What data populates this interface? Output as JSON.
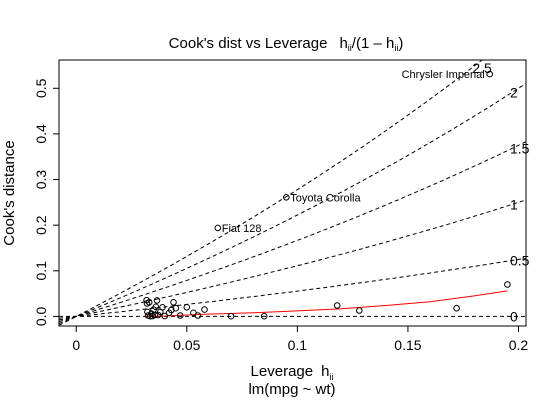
{
  "chart_data": {
    "type": "scatter",
    "title": "Cook's dist vs Leverage",
    "title_formula": {
      "lhs": "h",
      "lhs_sub": "ii",
      "rhs_open": "/(1 – h",
      "rhs_sub": "ii",
      "rhs_close": ")"
    },
    "xlabel": "Leverage",
    "xlabel_h": "h",
    "xlabel_sub": "ii",
    "ylabel": "Cook's distance",
    "subtitle": "lm(mpg ~ wt)",
    "xlim": [
      -0.0078,
      0.2034
    ],
    "ylim": [
      -0.021,
      0.562
    ],
    "x_ticks": [
      0,
      0.05,
      0.1,
      0.15,
      0.2
    ],
    "x_tick_labels": [
      "0",
      "0.05",
      "0.1",
      "0.15",
      "0.2"
    ],
    "y_ticks": [
      0,
      0.1,
      0.2,
      0.3,
      0.4,
      0.5
    ],
    "y_tick_labels": [
      "0.0",
      "0.1",
      "0.2",
      "0.3",
      "0.4",
      "0.5"
    ],
    "grid": false,
    "points": [
      {
        "x": 0.0318,
        "y": 0.0355
      },
      {
        "x": 0.032,
        "y": 0.0285
      },
      {
        "x": 0.0322,
        "y": 0.01
      },
      {
        "x": 0.0325,
        "y": 0.002
      },
      {
        "x": 0.033,
        "y": 0.031
      },
      {
        "x": 0.0335,
        "y": 0.0005
      },
      {
        "x": 0.034,
        "y": 0.006
      },
      {
        "x": 0.0345,
        "y": 0.001
      },
      {
        "x": 0.035,
        "y": 0.015
      },
      {
        "x": 0.0355,
        "y": 0.003
      },
      {
        "x": 0.036,
        "y": 0.021
      },
      {
        "x": 0.0365,
        "y": 0.035
      },
      {
        "x": 0.037,
        "y": 0.003
      },
      {
        "x": 0.038,
        "y": 0.01
      },
      {
        "x": 0.039,
        "y": 0.02
      },
      {
        "x": 0.04,
        "y": 0.001
      },
      {
        "x": 0.042,
        "y": 0.008
      },
      {
        "x": 0.043,
        "y": 0.014
      },
      {
        "x": 0.044,
        "y": 0.031
      },
      {
        "x": 0.045,
        "y": 0.018
      },
      {
        "x": 0.047,
        "y": 0.002
      },
      {
        "x": 0.05,
        "y": 0.02
      },
      {
        "x": 0.053,
        "y": 0.008
      },
      {
        "x": 0.055,
        "y": 0.002
      },
      {
        "x": 0.058,
        "y": 0.015
      },
      {
        "x": 0.07,
        "y": 0.0005
      },
      {
        "x": 0.085,
        "y": 0.0005
      },
      {
        "x": 0.118,
        "y": 0.024
      },
      {
        "x": 0.128,
        "y": 0.013
      },
      {
        "x": 0.172,
        "y": 0.018
      },
      {
        "x": 0.195,
        "y": 0.07
      }
    ],
    "labeled_points": [
      {
        "x": 0.187,
        "y": 0.531,
        "label": "Chrysler Imperial",
        "side": "left"
      },
      {
        "x": 0.095,
        "y": 0.261,
        "label": "Toyota Corolla",
        "side": "right"
      },
      {
        "x": 0.064,
        "y": 0.194,
        "label": "Fiat 128",
        "side": "right"
      }
    ],
    "smooth_line": {
      "color": "#ff0000",
      "x": [
        0.0318,
        0.04,
        0.05,
        0.06,
        0.08,
        0.1,
        0.12,
        0.14,
        0.16,
        0.18,
        0.195
      ],
      "y": [
        0.0,
        0.001,
        0.003,
        0.005,
        0.008,
        0.012,
        0.017,
        0.024,
        0.032,
        0.045,
        0.056
      ]
    },
    "contours": [
      {
        "label": "0",
        "slope": 0.0
      },
      {
        "label": "0.5",
        "slope": 0.5
      },
      {
        "label": "1",
        "slope": 1.0
      },
      {
        "label": "1.5",
        "slope": 1.5
      },
      {
        "label": "2",
        "slope": 2.0
      },
      {
        "label": "2.5",
        "slope": 2.5
      }
    ]
  }
}
